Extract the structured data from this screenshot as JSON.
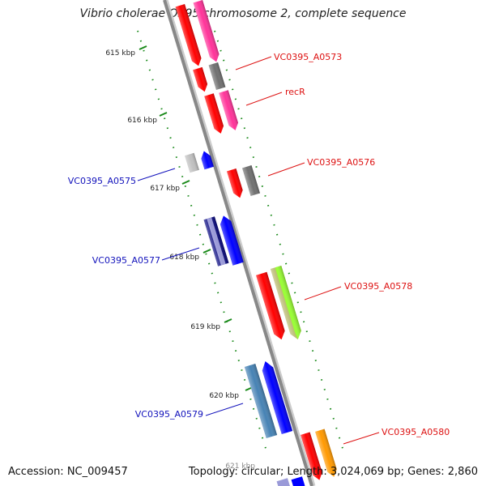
{
  "title": "Vibrio cholerae O395 chromosome 2, complete sequence",
  "footer": {
    "accession": "Accession: NC_009457",
    "topology": "Topology: circular; Length: 3,024,069 bp; Genes: 2,860"
  },
  "kbp_labels": [
    "615 kbp",
    "616 kbp",
    "617 kbp",
    "618 kbp",
    "619 kbp",
    "620 kbp",
    "621 kbp"
  ],
  "gene_labels_forward": [
    "VC0395_A0573",
    "recR",
    "VC0395_A0576",
    "VC0395_A0578",
    "VC0395_A0580"
  ],
  "gene_labels_reverse": [
    "VC0395_A0575",
    "VC0395_A0577",
    "VC0395_A0579"
  ],
  "colors": {
    "backbone": "#888888",
    "forward_label": "#dd1111",
    "reverse_label": "#1111bb",
    "tick": "#1a8a1a",
    "red": "#ff0000",
    "pink": "#ff3399",
    "gray": "#707070",
    "light_gray": "#c0c0c0",
    "blue": "#0000ff",
    "navy": "#0a0a80",
    "lavender": "#9a9ad8",
    "steel_blue": "#4682b4",
    "olive": "#b7b76b",
    "lime": "#99ff33",
    "orange": "#ff9900"
  }
}
